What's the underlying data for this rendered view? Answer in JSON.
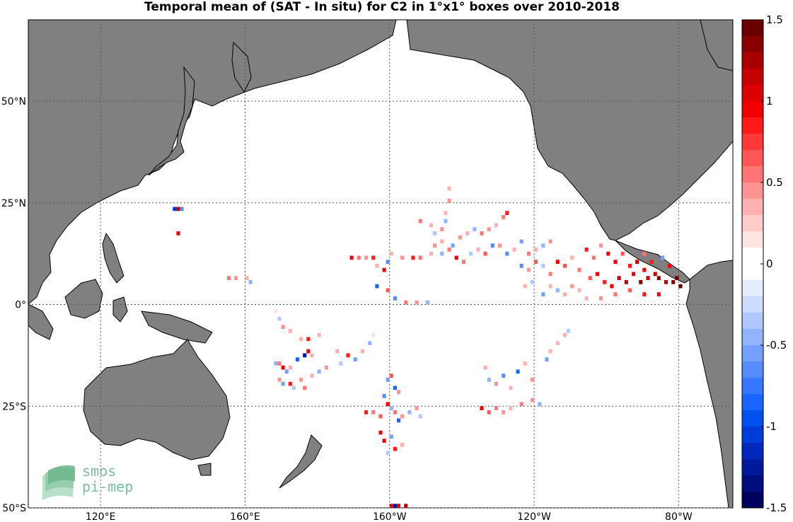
{
  "title": "Temporal mean of (SAT - In situ) for C2 in 1°x1° boxes over 2010-2018",
  "lat_labels": [
    {
      "lat": 50,
      "text": "50°N"
    },
    {
      "lat": 25,
      "text": "25°N"
    },
    {
      "lat": 0,
      "text": "0°"
    },
    {
      "lat": -25,
      "text": "25°S"
    },
    {
      "lat": -50,
      "text": "50°S"
    }
  ],
  "lon_labels": [
    {
      "lon": 120,
      "text": "120°E"
    },
    {
      "lon": 160,
      "text": "160°E"
    },
    {
      "lon": 200,
      "text": "160°W"
    },
    {
      "lon": 240,
      "text": "120°W"
    },
    {
      "lon": 280,
      "text": "80°W"
    }
  ],
  "colorbar": {
    "min": -1.5,
    "max": 1.5,
    "tick_labels": [
      "1.5",
      "1",
      "0.5",
      "0",
      "-0.5",
      "-1",
      "-1.5"
    ],
    "colors_top_to_bottom": [
      "#6b0000",
      "#8a0000",
      "#a80000",
      "#c40000",
      "#dd0000",
      "#f00000",
      "#ff1a1a",
      "#ff3838",
      "#ff5656",
      "#ff7474",
      "#ff9292",
      "#ffb0b0",
      "#ffcccc",
      "#ffe4e4",
      "#ffffff",
      "#ffffff",
      "#e4eeff",
      "#ccdcff",
      "#b0c8ff",
      "#92b4ff",
      "#74a0ff",
      "#568cff",
      "#3878ff",
      "#1a64ff",
      "#0050f0",
      "#003cd8",
      "#0028bb",
      "#001a9c",
      "#000d7c",
      "#00005e"
    ]
  },
  "land_color": "#808080",
  "logo": {
    "line1": "smos",
    "line2": "pi-mep"
  },
  "chart_data": {
    "type": "heatmap",
    "title": "Temporal mean of (SAT - In situ) for C2 in 1°x1° boxes over 2010-2018",
    "x_range": [
      100,
      295
    ],
    "y_range": [
      -50,
      70
    ],
    "clim": [
      -1.5,
      1.5
    ],
    "cells_note": "",
    "cells": [
      [
        140,
        23,
        -1.0
      ],
      [
        141,
        23,
        1.2
      ],
      [
        142,
        23,
        -0.6
      ],
      [
        141,
        17,
        1.0
      ],
      [
        155,
        6,
        0.6
      ],
      [
        157,
        6,
        0.5
      ],
      [
        160,
        6,
        0.3
      ],
      [
        161,
        5,
        -0.4
      ],
      [
        168,
        -2,
        0.2
      ],
      [
        169,
        -4,
        -0.3
      ],
      [
        170,
        -6,
        0.5
      ],
      [
        172,
        -7,
        0.3
      ],
      [
        175,
        -9,
        0.4
      ],
      [
        177,
        -9,
        0.8
      ],
      [
        180,
        -8,
        0.3
      ],
      [
        168,
        -15,
        -0.4
      ],
      [
        169,
        -15,
        0.6
      ],
      [
        170,
        -16,
        0.9
      ],
      [
        171,
        -17,
        -0.5
      ],
      [
        172,
        -16,
        0.3
      ],
      [
        174,
        -14,
        -0.8
      ],
      [
        176,
        -13,
        -1.2
      ],
      [
        177,
        -12,
        0.9
      ],
      [
        178,
        -13,
        0.4
      ],
      [
        169,
        -19,
        0.5
      ],
      [
        170,
        -20,
        -0.5
      ],
      [
        172,
        -20,
        0.8
      ],
      [
        173,
        -21,
        -0.3
      ],
      [
        175,
        -19,
        0.5
      ],
      [
        176,
        -21,
        0.6
      ],
      [
        178,
        -18,
        0.3
      ],
      [
        180,
        -17,
        -0.4
      ],
      [
        182,
        -16,
        0.5
      ],
      [
        185,
        -12,
        0.4
      ],
      [
        186,
        -15,
        -0.3
      ],
      [
        188,
        -13,
        0.8
      ],
      [
        190,
        -14,
        -0.5
      ],
      [
        192,
        -12,
        0.3
      ],
      [
        194,
        -10,
        -0.4
      ],
      [
        195,
        -8,
        0.2
      ],
      [
        199,
        -19,
        -0.5
      ],
      [
        200,
        -18,
        0.7
      ],
      [
        201,
        -21,
        -0.9
      ],
      [
        202,
        -22,
        0.5
      ],
      [
        198,
        -23,
        -0.6
      ],
      [
        199,
        -25,
        0.9
      ],
      [
        200,
        -26,
        -0.4
      ],
      [
        201,
        -27,
        0.6
      ],
      [
        202,
        -29,
        -0.8
      ],
      [
        193,
        -27,
        0.8
      ],
      [
        195,
        -27,
        0.6
      ],
      [
        197,
        -28,
        0.7
      ],
      [
        203,
        -28,
        0.5
      ],
      [
        205,
        -27,
        -0.4
      ],
      [
        207,
        -26,
        0.5
      ],
      [
        208,
        -28,
        -0.3
      ],
      [
        197,
        -32,
        0.9
      ],
      [
        198,
        -34,
        1.0
      ],
      [
        200,
        -33,
        -0.5
      ],
      [
        201,
        -36,
        0.8
      ],
      [
        203,
        -35,
        0.4
      ],
      [
        199,
        -37,
        -0.3
      ],
      [
        200,
        -50,
        1.0
      ],
      [
        201,
        -50,
        -1.2
      ],
      [
        202,
        -50,
        0.9
      ],
      [
        204,
        -50,
        1.1
      ],
      [
        226,
        -16,
        0.3
      ],
      [
        227,
        -19,
        -0.4
      ],
      [
        229,
        -20,
        0.5
      ],
      [
        231,
        -18,
        -0.6
      ],
      [
        233,
        -21,
        0.4
      ],
      [
        235,
        -17,
        -0.8
      ],
      [
        237,
        -15,
        0.3
      ],
      [
        239,
        -19,
        0.5
      ],
      [
        225,
        -26,
        0.9
      ],
      [
        227,
        -27,
        0.7
      ],
      [
        229,
        -26,
        0.6
      ],
      [
        231,
        -27,
        0.5
      ],
      [
        233,
        -26,
        0.3
      ],
      [
        236,
        -25,
        0.6
      ],
      [
        239,
        -24,
        0.5
      ],
      [
        241,
        -25,
        -0.4
      ],
      [
        243,
        -14,
        -0.5
      ],
      [
        244,
        -12,
        0.4
      ],
      [
        246,
        -10,
        0.3
      ],
      [
        248,
        -8,
        0.3
      ],
      [
        249,
        -7,
        -0.3
      ],
      [
        189,
        11,
        0.9
      ],
      [
        191,
        11,
        0.6
      ],
      [
        193,
        11,
        0.5
      ],
      [
        195,
        11,
        0.8
      ],
      [
        196,
        9,
        0.4
      ],
      [
        198,
        8,
        0.9
      ],
      [
        199,
        10,
        -0.6
      ],
      [
        200,
        12,
        0.4
      ],
      [
        203,
        11,
        0.5
      ],
      [
        206,
        11,
        0.8
      ],
      [
        208,
        11,
        0.6
      ],
      [
        211,
        12,
        0.3
      ],
      [
        196,
        4,
        -0.9
      ],
      [
        199,
        3,
        0.7
      ],
      [
        201,
        1,
        -0.6
      ],
      [
        204,
        0,
        0.6
      ],
      [
        207,
        0,
        0.5
      ],
      [
        210,
        0,
        -0.4
      ],
      [
        208,
        20,
        0.6
      ],
      [
        211,
        19,
        0.4
      ],
      [
        212,
        17,
        -0.3
      ],
      [
        214,
        18,
        0.5
      ],
      [
        215,
        20,
        -0.4
      ],
      [
        215,
        22,
        0.3
      ],
      [
        216,
        25,
        0.5
      ],
      [
        216,
        28,
        0.3
      ],
      [
        212,
        14,
        0.5
      ],
      [
        214,
        12,
        -0.4
      ],
      [
        216,
        13,
        0.6
      ],
      [
        218,
        11,
        0.9
      ],
      [
        220,
        10,
        0.6
      ],
      [
        222,
        12,
        -0.3
      ],
      [
        224,
        13,
        0.4
      ],
      [
        226,
        12,
        0.7
      ],
      [
        228,
        14,
        -0.6
      ],
      [
        214,
        15,
        0.4
      ],
      [
        217,
        14,
        -0.5
      ],
      [
        219,
        16,
        0.5
      ],
      [
        221,
        17,
        0.3
      ],
      [
        223,
        18,
        -0.4
      ],
      [
        225,
        17,
        0.6
      ],
      [
        227,
        18,
        0.5
      ],
      [
        229,
        19,
        0.4
      ],
      [
        231,
        21,
        0.6
      ],
      [
        232,
        22,
        0.8
      ],
      [
        230,
        14,
        0.5
      ],
      [
        232,
        12,
        -0.6
      ],
      [
        234,
        13,
        0.4
      ],
      [
        236,
        15,
        -0.5
      ],
      [
        238,
        12,
        0.6
      ],
      [
        240,
        13,
        0.3
      ],
      [
        242,
        14,
        -0.4
      ],
      [
        244,
        15,
        0.5
      ],
      [
        236,
        9,
        -0.6
      ],
      [
        238,
        8,
        0.5
      ],
      [
        240,
        10,
        0.7
      ],
      [
        242,
        9,
        -0.3
      ],
      [
        244,
        7,
        0.6
      ],
      [
        246,
        10,
        0.9
      ],
      [
        248,
        9,
        0.7
      ],
      [
        250,
        11,
        0.4
      ],
      [
        252,
        8,
        0.6
      ],
      [
        254,
        13,
        0.8
      ],
      [
        256,
        11,
        0.6
      ],
      [
        258,
        14,
        0.5
      ],
      [
        260,
        12,
        0.9
      ],
      [
        262,
        10,
        1.0
      ],
      [
        264,
        12,
        0.7
      ],
      [
        266,
        9,
        0.8
      ],
      [
        268,
        10,
        1.1
      ],
      [
        270,
        8,
        0.9
      ],
      [
        255,
        6,
        0.7
      ],
      [
        257,
        7,
        1.0
      ],
      [
        259,
        5,
        0.8
      ],
      [
        261,
        4,
        0.9
      ],
      [
        263,
        6,
        1.1
      ],
      [
        265,
        5,
        1.2
      ],
      [
        267,
        7,
        1.0
      ],
      [
        269,
        5,
        1.3
      ],
      [
        271,
        6,
        1.2
      ],
      [
        273,
        7,
        1.1
      ],
      [
        274,
        6,
        1.3
      ],
      [
        276,
        5,
        1.2
      ],
      [
        278,
        5,
        1.4
      ],
      [
        279,
        6,
        1.5
      ],
      [
        280,
        4,
        1.5
      ],
      [
        277,
        9,
        1.0
      ],
      [
        272,
        10,
        0.8
      ],
      [
        275,
        11,
        -0.5
      ],
      [
        270,
        12,
        0.6
      ],
      [
        250,
        4,
        0.5
      ],
      [
        252,
        3,
        0.4
      ],
      [
        254,
        1,
        0.3
      ],
      [
        258,
        1,
        0.5
      ],
      [
        262,
        2,
        0.6
      ],
      [
        266,
        3,
        0.7
      ],
      [
        270,
        2,
        0.8
      ],
      [
        274,
        2,
        0.9
      ],
      [
        246,
        3,
        -0.4
      ],
      [
        244,
        4,
        0.3
      ],
      [
        242,
        2,
        -0.5
      ],
      [
        248,
        2,
        0.4
      ],
      [
        239,
        5,
        -0.3
      ],
      [
        237,
        4,
        0.3
      ]
    ]
  }
}
